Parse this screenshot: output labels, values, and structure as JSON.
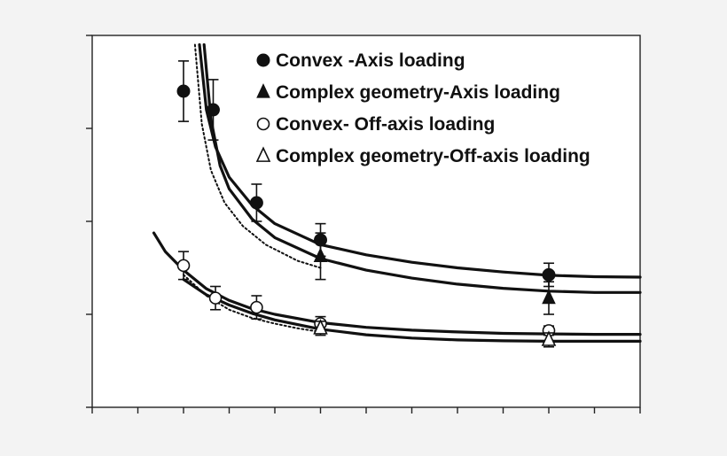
{
  "chart_data": {
    "type": "scatter",
    "xlim": [
      0,
      12
    ],
    "ylim": [
      0,
      8
    ],
    "x_ticks": [
      0,
      1,
      2,
      3,
      4,
      5,
      6,
      7,
      8,
      9,
      10,
      11,
      12
    ],
    "y_ticks": [
      0,
      2,
      4,
      6,
      8
    ],
    "tick_labels_shown": false,
    "grid": false,
    "legend_position": "top-right",
    "series": [
      {
        "name": "Convex -Axis loading",
        "marker": "filled-circle",
        "points": [
          {
            "x": 2.0,
            "y": 6.8,
            "err": 0.65
          },
          {
            "x": 2.65,
            "y": 6.4,
            "err": 0.65
          },
          {
            "x": 3.6,
            "y": 4.4,
            "err": 0.4
          },
          {
            "x": 5.0,
            "y": 3.6,
            "err": 0.35
          },
          {
            "x": 10.0,
            "y": 2.85,
            "err": 0.25
          }
        ],
        "curve": {
          "x": [
            2.35,
            2.5,
            2.7,
            3.0,
            3.5,
            4.0,
            5.0,
            6.0,
            7.0,
            8.0,
            9.0,
            10.0,
            11.0,
            12.0
          ],
          "y": [
            7.8,
            6.4,
            5.6,
            4.95,
            4.35,
            3.95,
            3.5,
            3.28,
            3.12,
            3.0,
            2.91,
            2.84,
            2.81,
            2.8
          ],
          "style": "solid"
        }
      },
      {
        "name": "Complex geometry-Axis loading",
        "marker": "filled-triangle",
        "points": [
          {
            "x": 5.0,
            "y": 3.25,
            "err": 0.5
          },
          {
            "x": 10.0,
            "y": 2.35,
            "err": 0.35
          }
        ],
        "curve": {
          "x": [
            2.45,
            2.6,
            2.8,
            3.0,
            3.5,
            4.0,
            5.0,
            6.0,
            7.0,
            8.0,
            9.0,
            10.0,
            11.0,
            12.0
          ],
          "y": [
            7.8,
            6.2,
            5.2,
            4.7,
            4.05,
            3.65,
            3.2,
            2.95,
            2.78,
            2.65,
            2.56,
            2.5,
            2.47,
            2.47
          ],
          "style": "solid"
        }
      },
      {
        "name": "Convex- Off-axis loading",
        "marker": "open-circle",
        "points": [
          {
            "x": 2.0,
            "y": 3.05,
            "err": 0.3
          },
          {
            "x": 2.7,
            "y": 2.35,
            "err": 0.25
          },
          {
            "x": 3.6,
            "y": 2.15,
            "err": 0.25
          },
          {
            "x": 5.0,
            "y": 1.8,
            "err": 0.15
          },
          {
            "x": 10.0,
            "y": 1.65,
            "err": 0.1
          }
        ],
        "curve": {
          "x": [
            1.35,
            1.6,
            2.0,
            2.5,
            3.0,
            3.5,
            4.0,
            5.0,
            6.0,
            7.0,
            8.0,
            9.0,
            10.0,
            11.0,
            12.0
          ],
          "y": [
            3.75,
            3.35,
            2.95,
            2.55,
            2.3,
            2.12,
            2.0,
            1.82,
            1.72,
            1.66,
            1.62,
            1.59,
            1.58,
            1.57,
            1.57
          ],
          "style": "solid"
        }
      },
      {
        "name": "Complex geometry-Off-axis loading",
        "marker": "open-triangle",
        "points": [
          {
            "x": 5.0,
            "y": 1.7,
            "err": 0.15
          },
          {
            "x": 10.0,
            "y": 1.45,
            "err": 0.15
          }
        ],
        "curve": {
          "x": [
            2.0,
            2.5,
            3.0,
            3.5,
            4.0,
            5.0,
            6.0,
            7.0,
            8.0,
            9.0,
            10.0,
            11.0,
            12.0
          ],
          "y": [
            2.75,
            2.42,
            2.2,
            2.02,
            1.88,
            1.68,
            1.56,
            1.49,
            1.45,
            1.43,
            1.42,
            1.42,
            1.42
          ],
          "style": "solid"
        }
      },
      {
        "name": "",
        "marker": "none",
        "points": [],
        "curve": {
          "x": [
            2.25,
            2.4,
            2.6,
            2.9,
            3.3,
            3.8,
            4.5,
            5.0
          ],
          "y": [
            7.8,
            6.1,
            5.1,
            4.4,
            3.9,
            3.5,
            3.15,
            3.0
          ],
          "style": "dotted"
        }
      },
      {
        "name": "",
        "marker": "none",
        "points": [],
        "curve": {
          "x": [
            2.0,
            2.5,
            3.0,
            3.5,
            4.0,
            4.5,
            5.0
          ],
          "y": [
            2.85,
            2.4,
            2.1,
            1.92,
            1.8,
            1.7,
            1.62
          ],
          "style": "dotted"
        }
      }
    ]
  }
}
